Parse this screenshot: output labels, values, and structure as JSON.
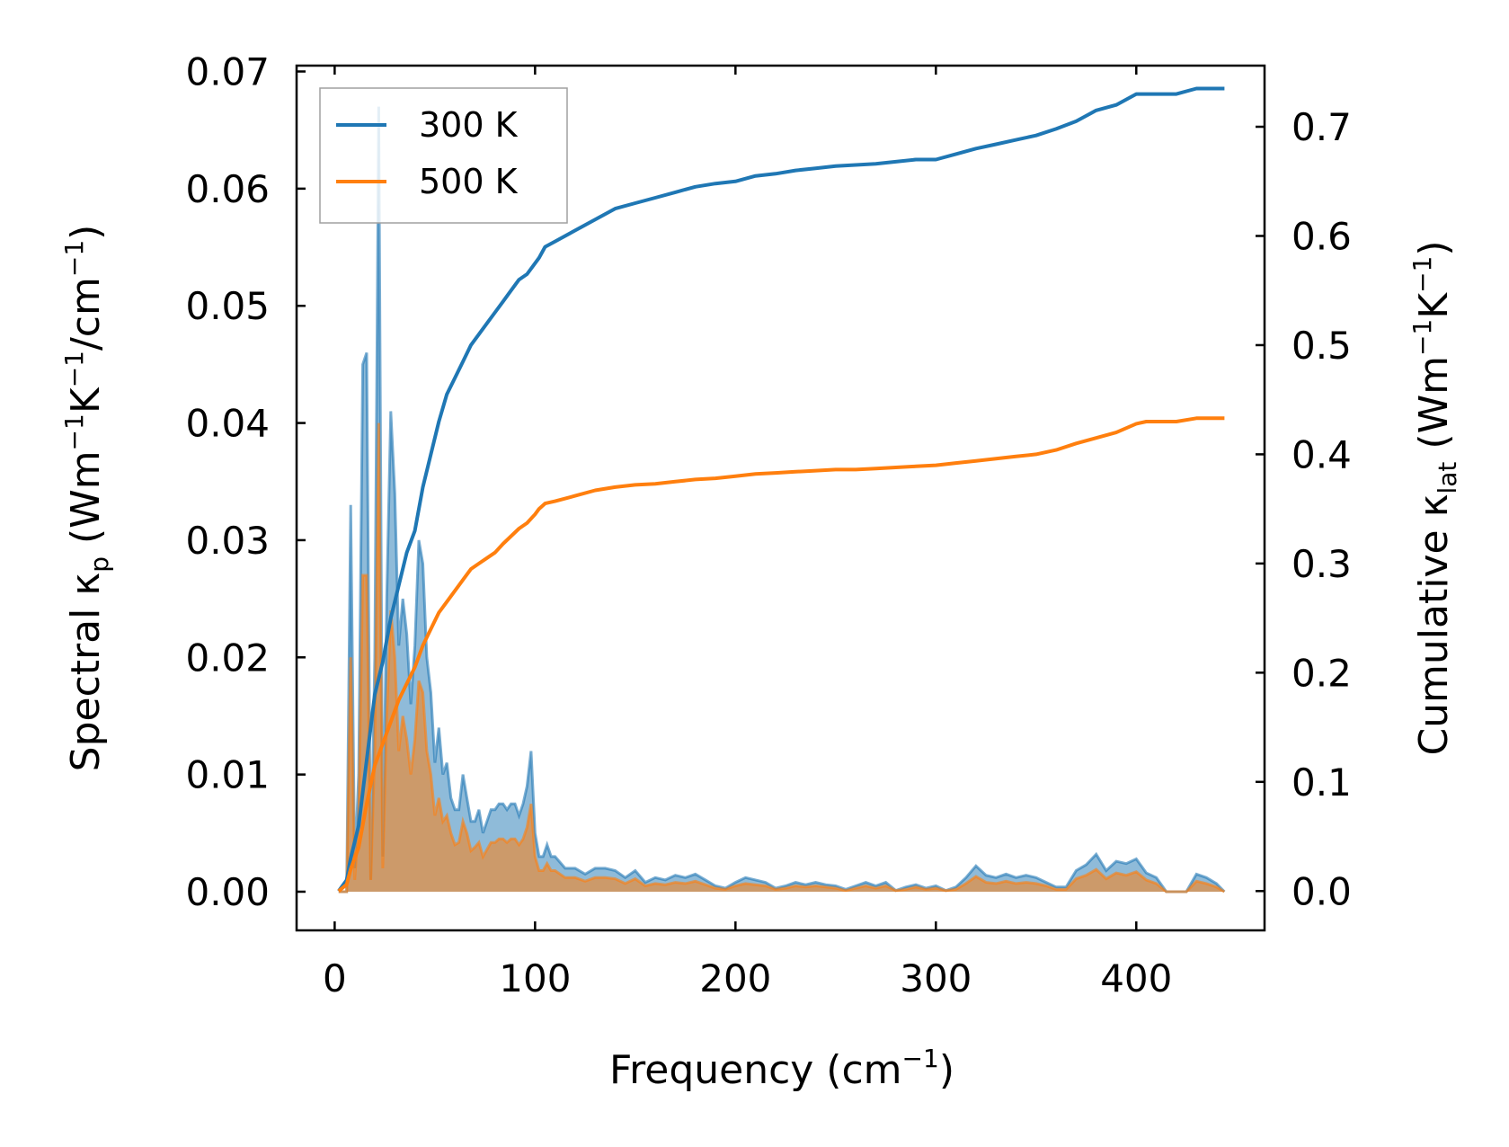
{
  "chart_data": {
    "type": "line",
    "x_axis": {
      "label": "Frequency (cm",
      "label_sup": "−1",
      "label_end": ")",
      "lim": [
        -19,
        464
      ],
      "ticks": [
        0,
        100,
        200,
        300,
        400
      ],
      "tick_labels": [
        "0",
        "100",
        "200",
        "300",
        "400"
      ]
    },
    "y_left": {
      "label_parts": [
        "Spectral κ",
        "p",
        " (Wm",
        "−1",
        "K",
        "−1",
        "/cm",
        "−1",
        ")"
      ],
      "lim": [
        -0.0033,
        0.0705
      ],
      "ticks": [
        0,
        0.01,
        0.02,
        0.03,
        0.04,
        0.05,
        0.06,
        0.07
      ],
      "tick_labels": [
        "0.00",
        "0.01",
        "0.02",
        "0.03",
        "0.04",
        "0.05",
        "0.06",
        "0.07"
      ]
    },
    "y_right": {
      "label_parts": [
        "Cumulative κ",
        "lat",
        " (Wm",
        "−1",
        "K",
        "−1",
        ")"
      ],
      "lim": [
        -0.036,
        0.756
      ],
      "ticks": [
        0,
        0.1,
        0.2,
        0.3,
        0.4,
        0.5,
        0.6,
        0.7
      ],
      "tick_labels": [
        "0.0",
        "0.1",
        "0.2",
        "0.3",
        "0.4",
        "0.5",
        "0.6",
        "0.7"
      ]
    },
    "legend": {
      "position": "top-left",
      "entries": [
        {
          "label": "300 K",
          "color": "#1f77b4"
        },
        {
          "label": "500 K",
          "color": "#ff7f0e"
        }
      ]
    },
    "series": [
      {
        "name": "300 K",
        "color": "#1f77b4",
        "fill_color": "#1f77b4",
        "spectral": {
          "x": [
            2,
            6,
            8,
            10,
            12,
            14,
            16,
            18,
            20,
            22,
            24,
            26,
            28,
            30,
            32,
            34,
            36,
            38,
            40,
            42,
            44,
            46,
            48,
            50,
            52,
            54,
            56,
            58,
            60,
            62,
            64,
            66,
            68,
            70,
            72,
            74,
            76,
            78,
            80,
            82,
            84,
            86,
            88,
            90,
            92,
            94,
            96,
            98,
            100,
            102,
            104,
            106,
            108,
            110,
            115,
            120,
            125,
            130,
            135,
            140,
            145,
            150,
            155,
            160,
            165,
            170,
            175,
            180,
            185,
            190,
            195,
            200,
            205,
            210,
            215,
            220,
            225,
            230,
            235,
            240,
            245,
            250,
            255,
            260,
            265,
            270,
            275,
            280,
            285,
            290,
            295,
            300,
            305,
            310,
            315,
            320,
            325,
            330,
            335,
            340,
            345,
            350,
            355,
            360,
            365,
            370,
            375,
            380,
            385,
            390,
            395,
            400,
            405,
            410,
            415,
            420,
            425,
            430,
            435,
            440,
            444
          ],
          "y": [
            0,
            0,
            0.033,
            0.002,
            0.01,
            0.045,
            0.046,
            0.001,
            0.02,
            0.067,
            0.003,
            0.025,
            0.041,
            0.034,
            0.021,
            0.025,
            0.022,
            0.016,
            0.021,
            0.03,
            0.028,
            0.02,
            0.017,
            0.011,
            0.014,
            0.01,
            0.011,
            0.008,
            0.007,
            0.007,
            0.01,
            0.008,
            0.006,
            0.006,
            0.007,
            0.005,
            0.006,
            0.007,
            0.007,
            0.0075,
            0.0075,
            0.007,
            0.0075,
            0.0075,
            0.0065,
            0.0075,
            0.009,
            0.012,
            0.005,
            0.003,
            0.003,
            0.004,
            0.003,
            0.003,
            0.002,
            0.002,
            0.0015,
            0.002,
            0.002,
            0.0018,
            0.0012,
            0.0018,
            0.0008,
            0.0012,
            0.001,
            0.0014,
            0.0012,
            0.0015,
            0.001,
            0.0005,
            0.0003,
            0.0008,
            0.0012,
            0.001,
            0.0008,
            0.0003,
            0.0005,
            0.0008,
            0.0006,
            0.0008,
            0.0006,
            0.0005,
            0.0002,
            0.0005,
            0.0008,
            0.0005,
            0.0008,
            0.0001,
            0.0004,
            0.0006,
            0.0003,
            0.0005,
            0.0001,
            0.0004,
            0.0012,
            0.0022,
            0.0014,
            0.0012,
            0.0015,
            0.0012,
            0.0014,
            0.0012,
            0.0008,
            0.0004,
            0.0004,
            0.0018,
            0.0023,
            0.0032,
            0.0018,
            0.0026,
            0.0024,
            0.0028,
            0.0016,
            0.0012,
            0,
            0,
            0,
            0.0015,
            0.0012,
            0.0007,
            0
          ]
        },
        "cumulative": {
          "x": [
            2,
            6,
            8,
            12,
            16,
            20,
            24,
            28,
            32,
            36,
            40,
            44,
            48,
            52,
            56,
            60,
            64,
            68,
            72,
            76,
            80,
            84,
            88,
            92,
            96,
            100,
            102,
            105,
            110,
            120,
            130,
            140,
            150,
            160,
            170,
            180,
            190,
            200,
            210,
            220,
            230,
            240,
            250,
            260,
            270,
            280,
            290,
            300,
            310,
            320,
            330,
            340,
            350,
            360,
            370,
            380,
            390,
            400,
            405,
            410,
            420,
            430,
            435,
            444
          ],
          "y": [
            0,
            0.01,
            0.03,
            0.06,
            0.12,
            0.18,
            0.21,
            0.25,
            0.28,
            0.31,
            0.33,
            0.37,
            0.4,
            0.43,
            0.455,
            0.47,
            0.485,
            0.5,
            0.51,
            0.52,
            0.53,
            0.54,
            0.55,
            0.56,
            0.565,
            0.575,
            0.58,
            0.59,
            0.595,
            0.605,
            0.615,
            0.625,
            0.63,
            0.635,
            0.64,
            0.645,
            0.648,
            0.65,
            0.655,
            0.657,
            0.66,
            0.662,
            0.664,
            0.665,
            0.666,
            0.668,
            0.67,
            0.67,
            0.675,
            0.68,
            0.684,
            0.688,
            0.692,
            0.698,
            0.705,
            0.715,
            0.72,
            0.73,
            0.73,
            0.73,
            0.73,
            0.735,
            0.735,
            0.735
          ]
        }
      },
      {
        "name": "500 K",
        "color": "#ff7f0e",
        "fill_color": "#ff7f0e",
        "spectral": {
          "x": [
            2,
            6,
            8,
            10,
            12,
            14,
            16,
            18,
            20,
            22,
            24,
            26,
            28,
            30,
            32,
            34,
            36,
            38,
            40,
            42,
            44,
            46,
            48,
            50,
            52,
            54,
            56,
            58,
            60,
            62,
            64,
            66,
            68,
            70,
            72,
            74,
            76,
            78,
            80,
            82,
            84,
            86,
            88,
            90,
            92,
            94,
            96,
            98,
            100,
            102,
            104,
            106,
            108,
            110,
            115,
            120,
            125,
            130,
            135,
            140,
            145,
            150,
            155,
            160,
            165,
            170,
            175,
            180,
            185,
            190,
            195,
            200,
            205,
            210,
            215,
            220,
            225,
            230,
            235,
            240,
            245,
            250,
            255,
            260,
            265,
            270,
            275,
            280,
            285,
            290,
            295,
            300,
            305,
            310,
            315,
            320,
            325,
            330,
            335,
            340,
            345,
            350,
            355,
            360,
            365,
            370,
            375,
            380,
            385,
            390,
            395,
            400,
            405,
            410,
            415,
            420,
            425,
            430,
            435,
            440,
            444
          ],
          "y": [
            0,
            0,
            0.02,
            0.001,
            0.006,
            0.027,
            0.027,
            0.001,
            0.012,
            0.04,
            0.002,
            0.015,
            0.024,
            0.02,
            0.012,
            0.015,
            0.013,
            0.01,
            0.013,
            0.018,
            0.017,
            0.012,
            0.01,
            0.0065,
            0.008,
            0.006,
            0.0065,
            0.005,
            0.004,
            0.0042,
            0.006,
            0.005,
            0.0035,
            0.0038,
            0.0042,
            0.003,
            0.0036,
            0.0042,
            0.0042,
            0.0045,
            0.0045,
            0.0042,
            0.0045,
            0.0045,
            0.004,
            0.0045,
            0.0055,
            0.0075,
            0.003,
            0.0018,
            0.0018,
            0.0024,
            0.0018,
            0.0018,
            0.0012,
            0.0012,
            0.0009,
            0.0012,
            0.0012,
            0.0011,
            0.0007,
            0.0011,
            0.0005,
            0.0007,
            0.0006,
            0.0008,
            0.0007,
            0.0009,
            0.0006,
            0.0003,
            0.0002,
            0.0005,
            0.0007,
            0.0006,
            0.0005,
            0.0002,
            0.0003,
            0.0005,
            0.0004,
            0.0005,
            0.0004,
            0.0003,
            0.0001,
            0.0003,
            0.0005,
            0.0003,
            0.0005,
            0.0001,
            0.0002,
            0.0004,
            0.0002,
            0.0003,
            0.0001,
            0.0002,
            0.0007,
            0.0013,
            0.0008,
            0.0007,
            0.0009,
            0.0007,
            0.0008,
            0.0007,
            0.0005,
            0.0002,
            0.0002,
            0.0011,
            0.0014,
            0.0019,
            0.0011,
            0.0016,
            0.0014,
            0.0017,
            0.001,
            0.0007,
            0,
            0,
            0,
            0.0009,
            0.0007,
            0.0004,
            0
          ]
        },
        "cumulative": {
          "x": [
            2,
            6,
            8,
            12,
            16,
            20,
            24,
            28,
            32,
            36,
            40,
            44,
            48,
            52,
            56,
            60,
            64,
            68,
            72,
            76,
            80,
            84,
            88,
            92,
            96,
            100,
            102,
            105,
            110,
            120,
            130,
            140,
            150,
            160,
            170,
            180,
            190,
            200,
            210,
            220,
            230,
            240,
            250,
            260,
            270,
            280,
            290,
            300,
            310,
            320,
            330,
            340,
            350,
            360,
            370,
            380,
            390,
            400,
            405,
            410,
            420,
            430,
            435,
            444
          ],
          "y": [
            0,
            0.006,
            0.02,
            0.04,
            0.08,
            0.115,
            0.135,
            0.155,
            0.175,
            0.19,
            0.205,
            0.225,
            0.24,
            0.255,
            0.265,
            0.275,
            0.285,
            0.295,
            0.3,
            0.305,
            0.31,
            0.318,
            0.325,
            0.332,
            0.337,
            0.345,
            0.35,
            0.355,
            0.357,
            0.362,
            0.367,
            0.37,
            0.372,
            0.373,
            0.375,
            0.377,
            0.378,
            0.38,
            0.382,
            0.383,
            0.384,
            0.385,
            0.386,
            0.386,
            0.387,
            0.388,
            0.389,
            0.39,
            0.392,
            0.394,
            0.396,
            0.398,
            0.4,
            0.404,
            0.41,
            0.415,
            0.42,
            0.428,
            0.43,
            0.43,
            0.43,
            0.433,
            0.433,
            0.433
          ]
        }
      }
    ]
  }
}
